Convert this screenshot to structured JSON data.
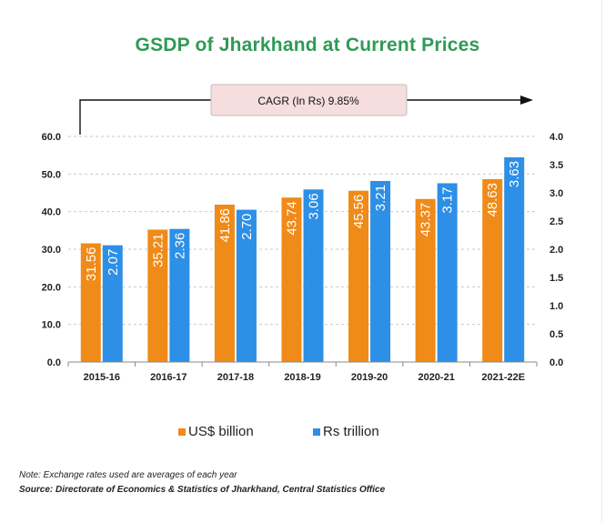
{
  "chart_data": {
    "type": "bar",
    "title": "GSDP of Jharkhand at Current Prices",
    "categories": [
      "2015-16",
      "2016-17",
      "2017-18",
      "2018-19",
      "2019-20",
      "2020-21",
      "2021-22E"
    ],
    "series": [
      {
        "name": "US$ billion",
        "axis": "left",
        "color": "#f08a18",
        "values": [
          31.56,
          35.21,
          41.86,
          43.74,
          45.56,
          43.37,
          48.63
        ],
        "labels": [
          "31.56",
          "35.21",
          "41.86",
          "43.74",
          "45.56",
          "43.37",
          "48.63"
        ]
      },
      {
        "name": "Rs trillion",
        "axis": "right",
        "color": "#2d8fe6",
        "values": [
          2.07,
          2.36,
          2.7,
          3.06,
          3.21,
          3.17,
          3.63
        ],
        "labels": [
          "2.07",
          "2.36",
          "2.70",
          "3.06",
          "3.21",
          "3.17",
          "3.63"
        ]
      }
    ],
    "y_left": {
      "min": 0,
      "max": 60,
      "ticks": [
        "0.0",
        "10.0",
        "20.0",
        "30.0",
        "40.0",
        "50.0",
        "60.0"
      ]
    },
    "y_right": {
      "min": 0,
      "max": 4,
      "ticks": [
        "0.0",
        "0.5",
        "1.0",
        "1.5",
        "2.0",
        "2.5",
        "3.0",
        "3.5",
        "4.0"
      ]
    },
    "grid": true,
    "legend": "bottom",
    "annotation": "CAGR  (In Rs) 9.85%"
  },
  "notes": {
    "note": "Note: Exchange rates used are averages of each year",
    "source": "Source: Directorate of Economics & Statistics of Jharkhand, Central Statistics Office"
  }
}
